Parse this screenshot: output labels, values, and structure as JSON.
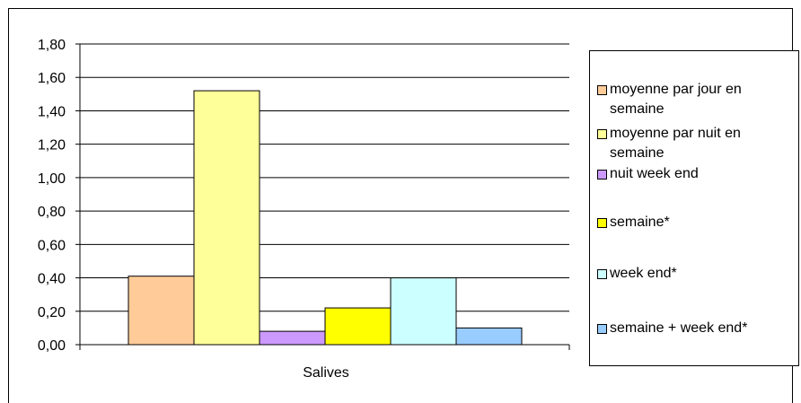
{
  "chart_data": {
    "type": "bar",
    "categories": [
      "Salives"
    ],
    "series": [
      {
        "name": "moyenne  par jour en semaine",
        "values": [
          0.41
        ],
        "color": "#FFCC99"
      },
      {
        "name": "moyenne par nuit en semaine",
        "values": [
          1.52
        ],
        "color": "#FFFF99"
      },
      {
        "name": "nuit week end",
        "values": [
          0.08
        ],
        "color": "#CC99FF"
      },
      {
        "name": "semaine*",
        "values": [
          0.22
        ],
        "color": "#FFFF00"
      },
      {
        "name": "week end*",
        "values": [
          0.4
        ],
        "color": "#CCFFFF"
      },
      {
        "name": "semaine + week end*",
        "values": [
          0.1
        ],
        "color": "#99CCFF"
      }
    ],
    "ylim": [
      0,
      1.8
    ],
    "yticks": [
      "0,00",
      "0,20",
      "0,40",
      "0,60",
      "0,80",
      "1,00",
      "1,20",
      "1,40",
      "1,60",
      "1,80"
    ],
    "title": "",
    "xlabel": "",
    "ylabel": "",
    "grid": true,
    "legend_position": "right"
  }
}
